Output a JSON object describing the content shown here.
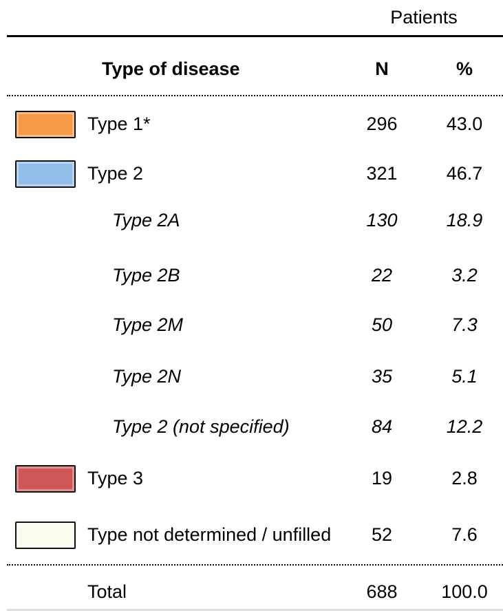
{
  "table": {
    "group_header": "Patients",
    "columns": [
      "Type of disease",
      "N",
      "%"
    ],
    "rows": [
      {
        "label": "Type 1*",
        "n": "296",
        "pct": "43.0",
        "color": "#f79a45"
      },
      {
        "label": "Type 2",
        "n": "321",
        "pct": "46.7",
        "color": "#92bde9"
      },
      {
        "label": "Type 2A",
        "n": "130",
        "pct": "18.9",
        "sub": true
      },
      {
        "label": "Type 2B",
        "n": "22",
        "pct": "3.2",
        "sub": true
      },
      {
        "label": "Type 2M",
        "n": "50",
        "pct": "7.3",
        "sub": true
      },
      {
        "label": "Type 2N",
        "n": "35",
        "pct": "5.1",
        "sub": true
      },
      {
        "label": "Type 2 (not specified)",
        "n": "84",
        "pct": "12.2",
        "sub": true
      },
      {
        "label": "Type 3",
        "n": "19",
        "pct": "2.8",
        "color": "#d05757"
      },
      {
        "label": "Type not determined / unfilled",
        "n": "52",
        "pct": "7.6",
        "color": "#fbfaee"
      }
    ],
    "total": {
      "label": "Total",
      "n": "688",
      "pct": "100.0"
    }
  }
}
